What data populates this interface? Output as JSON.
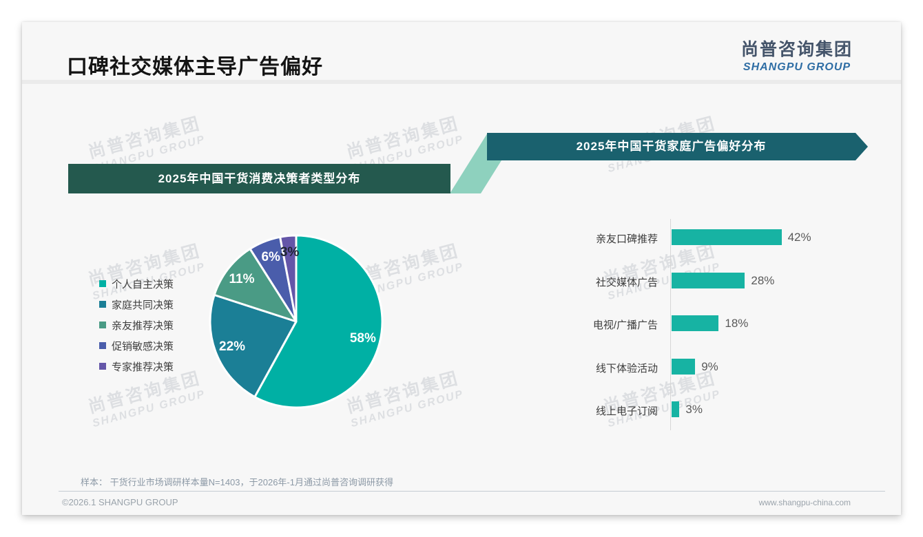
{
  "slide": {
    "title": "口碑社交媒体主导广告偏好",
    "logo": {
      "cn": "尚普咨询集团",
      "en": "SHANGPU GROUP"
    },
    "watermark": {
      "cn": "尚普咨询集团",
      "en": "SHANGPU GROUP"
    },
    "source_note": "样本： 干货行业市场调研样本量N=1403，于2026年-1月通过尚普咨询调研获得",
    "footer": {
      "left": "©2026.1 SHANGPU GROUP",
      "right": "www.shangpu-china.com"
    }
  },
  "colors": {
    "banner_left_bg": "#24594e",
    "banner_right_bg": "#1a616e",
    "connector": "#8ed1be",
    "accent_teal": "#17b3a3",
    "logo_blue": "#2e6da4",
    "logo_gray": "#44546a"
  },
  "chart_data": [
    {
      "type": "pie",
      "title": "2025年中国干货消费决策者类型分布",
      "labels": [
        "个人自主决策",
        "家庭共同决策",
        "亲友推荐决策",
        "促销敏感决策",
        "专家推荐决策"
      ],
      "values": [
        58,
        22,
        11,
        6,
        3
      ],
      "value_labels": [
        "58%",
        "22%",
        "11%",
        "6%",
        "3%"
      ],
      "colors": [
        "#00b0a4",
        "#1b7f96",
        "#4a9b85",
        "#4a5dab",
        "#6456a8"
      ],
      "value_label_colors": [
        "#ffffff",
        "#ffffff",
        "#ffffff",
        "#ffffff",
        "#1f2633"
      ],
      "start_angle_deg": 0,
      "direction": "clockwise",
      "legend_position": "left"
    },
    {
      "type": "bar",
      "title": "2025年中国干货家庭广告偏好分布",
      "orientation": "horizontal",
      "categories": [
        "亲友口碑推荐",
        "社交媒体广告",
        "电视/广播广告",
        "线下体验活动",
        "线上电子订阅"
      ],
      "values": [
        42,
        28,
        18,
        9,
        3
      ],
      "value_labels": [
        "42%",
        "28%",
        "18%",
        "9%",
        "3%"
      ],
      "bar_color": "#17b3a3",
      "xlim": [
        0,
        50
      ],
      "axis_color": "#d6d6d6"
    }
  ]
}
